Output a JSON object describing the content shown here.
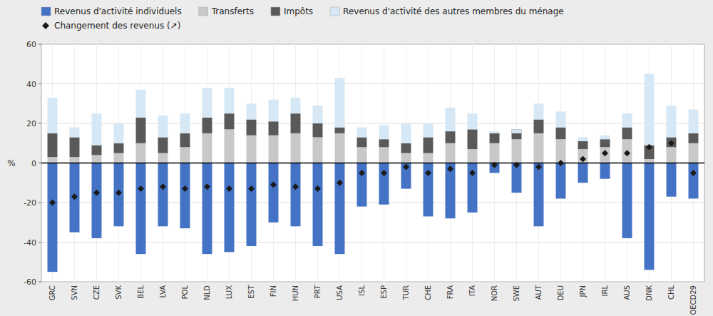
{
  "chart_data": {
    "type": "bar",
    "stacked": true,
    "grid": true,
    "legend": "upper left",
    "ylabel": "%",
    "categories": [
      "GRC",
      "SVN",
      "CZE",
      "SVK",
      "BEL",
      "LVA",
      "POL",
      "NLD",
      "LUX",
      "EST",
      "FIN",
      "HUN",
      "PRT",
      "USA",
      "ISL",
      "ESP",
      "TUR",
      "CHE",
      "FRA",
      "ITA",
      "NOR",
      "SWE",
      "AUT",
      "DEU",
      "JPN",
      "IRL",
      "AUS",
      "DNK",
      "CHL",
      "OECD29"
    ],
    "ylim": [
      -60,
      60
    ],
    "yticks": [
      -60,
      -40,
      -20,
      0,
      20,
      40,
      60
    ],
    "series": [
      {
        "name": "Revenus d'activité individuels",
        "type": "bar",
        "color": "#4472C4",
        "values": [
          -55,
          -35,
          -38,
          -32,
          -46,
          -32,
          -33,
          -46,
          -45,
          -42,
          -30,
          -32,
          -42,
          -46,
          -22,
          -21,
          -13,
          -27,
          -28,
          -25,
          -5,
          -15,
          -32,
          -18,
          -10,
          -8,
          -38,
          -54,
          -17,
          -18
        ]
      },
      {
        "name": "Transferts",
        "type": "bar",
        "color": "#C8C8C8",
        "values": [
          3,
          3,
          4,
          5,
          10,
          5,
          8,
          15,
          17,
          14,
          14,
          15,
          13,
          15,
          8,
          8,
          5,
          5,
          10,
          7,
          10,
          12,
          15,
          12,
          7,
          8,
          12,
          2,
          8,
          10
        ]
      },
      {
        "name": "Impôts",
        "type": "bar",
        "color": "#595959",
        "values": [
          12,
          10,
          5,
          5,
          13,
          8,
          7,
          8,
          8,
          8,
          7,
          10,
          7,
          3,
          5,
          4,
          5,
          8,
          6,
          10,
          5,
          5,
          7,
          6,
          4,
          4,
          6,
          7,
          5,
          5
        ]
      },
      {
        "name": "Revenus d'activité des autres membres du ménage",
        "type": "bar",
        "color": "#D6E8F5",
        "values": [
          18,
          5,
          16,
          10,
          14,
          11,
          10,
          15,
          13,
          8,
          11,
          8,
          9,
          25,
          5,
          7,
          10,
          7,
          12,
          8,
          1,
          -2,
          8,
          8,
          2,
          2,
          7,
          36,
          16,
          12
        ]
      },
      {
        "name": "Changement des revenus (↗)",
        "type": "scatter",
        "marker": "diamond",
        "color": "#1a1a1a",
        "values": [
          -20,
          -17,
          -15,
          -15,
          -13,
          -12,
          -13,
          -12,
          -13,
          -13,
          -11,
          -12,
          -13,
          -10,
          -5,
          -5,
          -2,
          -5,
          -3,
          -5,
          -1,
          -1,
          -2,
          0,
          2,
          5,
          5,
          8,
          10,
          -5
        ]
      }
    ]
  }
}
